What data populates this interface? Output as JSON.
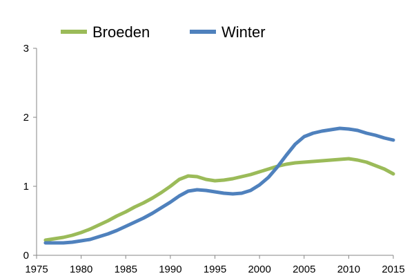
{
  "chart_data": {
    "type": "line",
    "title": "",
    "xlabel": "",
    "ylabel": "",
    "xlim": [
      1975,
      2015
    ],
    "ylim": [
      0,
      3
    ],
    "xticks": [
      "1975",
      "1980",
      "1985",
      "1990",
      "1995",
      "2000",
      "2005",
      "2010",
      "2015"
    ],
    "yticks": [
      "0",
      "1",
      "2",
      "3"
    ],
    "grid": false,
    "legend": "top-left",
    "series": [
      {
        "name": "Broeden",
        "color": "#9bbb59",
        "points": [
          [
            1976,
            0.22
          ],
          [
            1977,
            0.24
          ],
          [
            1978,
            0.26
          ],
          [
            1979,
            0.29
          ],
          [
            1980,
            0.33
          ],
          [
            1981,
            0.38
          ],
          [
            1982,
            0.44
          ],
          [
            1983,
            0.5
          ],
          [
            1984,
            0.57
          ],
          [
            1985,
            0.63
          ],
          [
            1986,
            0.7
          ],
          [
            1987,
            0.76
          ],
          [
            1988,
            0.83
          ],
          [
            1989,
            0.91
          ],
          [
            1990,
            1.0
          ],
          [
            1991,
            1.1
          ],
          [
            1992,
            1.15
          ],
          [
            1993,
            1.14
          ],
          [
            1994,
            1.1
          ],
          [
            1995,
            1.08
          ],
          [
            1996,
            1.09
          ],
          [
            1997,
            1.11
          ],
          [
            1998,
            1.14
          ],
          [
            1999,
            1.17
          ],
          [
            2000,
            1.21
          ],
          [
            2001,
            1.25
          ],
          [
            2002,
            1.29
          ],
          [
            2003,
            1.32
          ],
          [
            2004,
            1.34
          ],
          [
            2005,
            1.35
          ],
          [
            2006,
            1.36
          ],
          [
            2007,
            1.37
          ],
          [
            2008,
            1.38
          ],
          [
            2009,
            1.39
          ],
          [
            2010,
            1.4
          ],
          [
            2011,
            1.38
          ],
          [
            2012,
            1.35
          ],
          [
            2013,
            1.3
          ],
          [
            2014,
            1.25
          ],
          [
            2015,
            1.18
          ]
        ]
      },
      {
        "name": "Winter",
        "color": "#4f81bd",
        "points": [
          [
            1976,
            0.18
          ],
          [
            1977,
            0.18
          ],
          [
            1978,
            0.18
          ],
          [
            1979,
            0.19
          ],
          [
            1980,
            0.21
          ],
          [
            1981,
            0.23
          ],
          [
            1982,
            0.27
          ],
          [
            1983,
            0.31
          ],
          [
            1984,
            0.36
          ],
          [
            1985,
            0.42
          ],
          [
            1986,
            0.48
          ],
          [
            1987,
            0.54
          ],
          [
            1988,
            0.61
          ],
          [
            1989,
            0.69
          ],
          [
            1990,
            0.77
          ],
          [
            1991,
            0.86
          ],
          [
            1992,
            0.93
          ],
          [
            1993,
            0.95
          ],
          [
            1994,
            0.94
          ],
          [
            1995,
            0.92
          ],
          [
            1996,
            0.9
          ],
          [
            1997,
            0.89
          ],
          [
            1998,
            0.9
          ],
          [
            1999,
            0.94
          ],
          [
            2000,
            1.02
          ],
          [
            2001,
            1.13
          ],
          [
            2002,
            1.28
          ],
          [
            2003,
            1.45
          ],
          [
            2004,
            1.61
          ],
          [
            2005,
            1.72
          ],
          [
            2006,
            1.77
          ],
          [
            2007,
            1.8
          ],
          [
            2008,
            1.82
          ],
          [
            2009,
            1.84
          ],
          [
            2010,
            1.83
          ],
          [
            2011,
            1.81
          ],
          [
            2012,
            1.77
          ],
          [
            2013,
            1.74
          ],
          [
            2014,
            1.7
          ],
          [
            2015,
            1.67
          ]
        ]
      }
    ]
  }
}
